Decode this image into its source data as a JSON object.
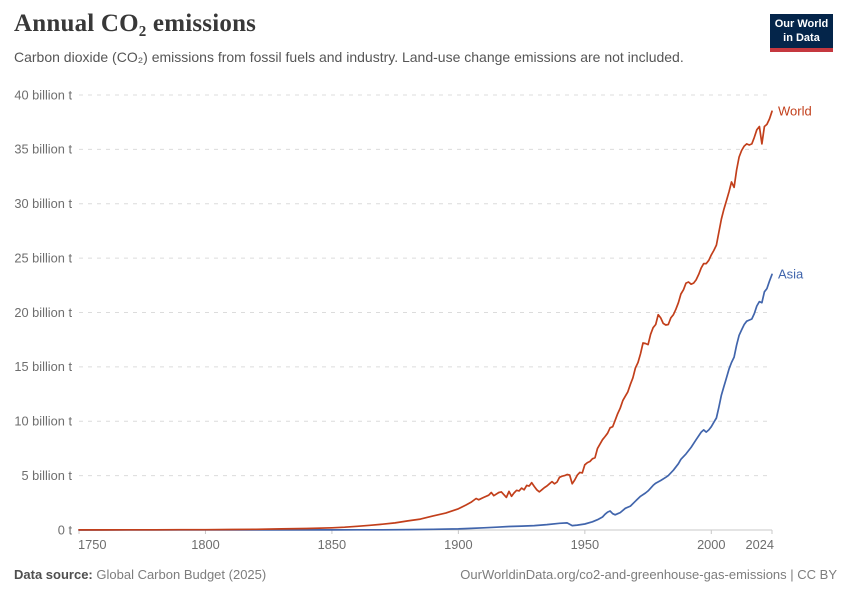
{
  "header": {
    "title": "Annual CO₂ emissions",
    "subtitle": "Carbon dioxide (CO₂) emissions from fossil fuels and industry. Land-use change emissions are not included.",
    "logo": {
      "line1": "Our World",
      "line2": "in Data",
      "bg_color": "#04254A",
      "accent_color": "#C5383F"
    }
  },
  "footer": {
    "source_label": "Data source:",
    "source_text": "Global Carbon Budget (2025)",
    "link_text": "OurWorldinData.org/co2-and-greenhouse-gas-emissions | CC BY"
  },
  "chart_data": {
    "type": "line",
    "title": "Annual CO₂ emissions",
    "unit": "billion tonnes of CO₂",
    "xlim": [
      1750,
      2024
    ],
    "ylim": [
      0,
      40
    ],
    "grid": "horizontal-dashed",
    "legend_position": "line-end-labels",
    "x_ticks": [
      1750,
      1800,
      1850,
      1900,
      1950,
      2000,
      2024
    ],
    "y_ticks": [
      {
        "value": 0,
        "label": "0 t"
      },
      {
        "value": 5,
        "label": "5 billion t"
      },
      {
        "value": 10,
        "label": "10 billion t"
      },
      {
        "value": 15,
        "label": "15 billion t"
      },
      {
        "value": 20,
        "label": "20 billion t"
      },
      {
        "value": 25,
        "label": "25 billion t"
      },
      {
        "value": 30,
        "label": "30 billion t"
      },
      {
        "value": 35,
        "label": "35 billion t"
      },
      {
        "value": 40,
        "label": "40 billion t"
      }
    ],
    "series": [
      {
        "name": "Asia",
        "color": "#4165AC",
        "points": [
          [
            1750,
            0
          ],
          [
            1800,
            0.005
          ],
          [
            1850,
            0.01
          ],
          [
            1860,
            0.015
          ],
          [
            1870,
            0.02
          ],
          [
            1880,
            0.035
          ],
          [
            1890,
            0.06
          ],
          [
            1900,
            0.1
          ],
          [
            1905,
            0.15
          ],
          [
            1910,
            0.2
          ],
          [
            1915,
            0.26
          ],
          [
            1920,
            0.32
          ],
          [
            1925,
            0.36
          ],
          [
            1930,
            0.4
          ],
          [
            1935,
            0.5
          ],
          [
            1940,
            0.62
          ],
          [
            1943,
            0.65
          ],
          [
            1945,
            0.4
          ],
          [
            1947,
            0.45
          ],
          [
            1950,
            0.55
          ],
          [
            1953,
            0.75
          ],
          [
            1955,
            0.95
          ],
          [
            1957,
            1.2
          ],
          [
            1958,
            1.45
          ],
          [
            1959,
            1.65
          ],
          [
            1960,
            1.75
          ],
          [
            1961,
            1.5
          ],
          [
            1962,
            1.4
          ],
          [
            1963,
            1.5
          ],
          [
            1964,
            1.6
          ],
          [
            1966,
            2.0
          ],
          [
            1968,
            2.2
          ],
          [
            1970,
            2.65
          ],
          [
            1972,
            3.1
          ],
          [
            1974,
            3.4
          ],
          [
            1975,
            3.6
          ],
          [
            1977,
            4.1
          ],
          [
            1978,
            4.3
          ],
          [
            1980,
            4.55
          ],
          [
            1982,
            4.85
          ],
          [
            1983,
            5.0
          ],
          [
            1985,
            5.5
          ],
          [
            1987,
            6.1
          ],
          [
            1988,
            6.5
          ],
          [
            1990,
            7.0
          ],
          [
            1992,
            7.6
          ],
          [
            1994,
            8.3
          ],
          [
            1996,
            9.0
          ],
          [
            1997,
            9.2
          ],
          [
            1998,
            9.0
          ],
          [
            1999,
            9.2
          ],
          [
            2000,
            9.5
          ],
          [
            2001,
            9.9
          ],
          [
            2002,
            10.3
          ],
          [
            2003,
            11.3
          ],
          [
            2004,
            12.4
          ],
          [
            2005,
            13.2
          ],
          [
            2006,
            14.0
          ],
          [
            2007,
            14.8
          ],
          [
            2008,
            15.4
          ],
          [
            2009,
            15.9
          ],
          [
            2010,
            17.0
          ],
          [
            2011,
            17.9
          ],
          [
            2012,
            18.4
          ],
          [
            2013,
            18.9
          ],
          [
            2014,
            19.2
          ],
          [
            2015,
            19.3
          ],
          [
            2016,
            19.4
          ],
          [
            2017,
            19.9
          ],
          [
            2018,
            20.6
          ],
          [
            2019,
            21.0
          ],
          [
            2020,
            20.9
          ],
          [
            2021,
            21.9
          ],
          [
            2022,
            22.2
          ],
          [
            2023,
            22.9
          ],
          [
            2024,
            23.5
          ]
        ]
      },
      {
        "name": "World",
        "color": "#C23F1B",
        "points": [
          [
            1750,
            0.01
          ],
          [
            1760,
            0.01
          ],
          [
            1770,
            0.015
          ],
          [
            1780,
            0.02
          ],
          [
            1790,
            0.025
          ],
          [
            1800,
            0.03
          ],
          [
            1810,
            0.05
          ],
          [
            1820,
            0.06
          ],
          [
            1830,
            0.1
          ],
          [
            1840,
            0.14
          ],
          [
            1850,
            0.2
          ],
          [
            1855,
            0.26
          ],
          [
            1860,
            0.34
          ],
          [
            1865,
            0.43
          ],
          [
            1870,
            0.53
          ],
          [
            1875,
            0.65
          ],
          [
            1880,
            0.84
          ],
          [
            1885,
            1.0
          ],
          [
            1890,
            1.3
          ],
          [
            1895,
            1.55
          ],
          [
            1900,
            1.95
          ],
          [
            1903,
            2.3
          ],
          [
            1905,
            2.55
          ],
          [
            1907,
            2.9
          ],
          [
            1908,
            2.78
          ],
          [
            1910,
            3.0
          ],
          [
            1912,
            3.2
          ],
          [
            1913,
            3.45
          ],
          [
            1914,
            3.15
          ],
          [
            1916,
            3.45
          ],
          [
            1917,
            3.5
          ],
          [
            1919,
            3.0
          ],
          [
            1920,
            3.55
          ],
          [
            1921,
            3.1
          ],
          [
            1922,
            3.4
          ],
          [
            1923,
            3.65
          ],
          [
            1924,
            3.6
          ],
          [
            1925,
            3.85
          ],
          [
            1926,
            3.7
          ],
          [
            1927,
            4.1
          ],
          [
            1928,
            4.05
          ],
          [
            1929,
            4.35
          ],
          [
            1930,
            4.0
          ],
          [
            1931,
            3.7
          ],
          [
            1932,
            3.5
          ],
          [
            1933,
            3.7
          ],
          [
            1934,
            3.9
          ],
          [
            1935,
            4.05
          ],
          [
            1936,
            4.25
          ],
          [
            1937,
            4.45
          ],
          [
            1938,
            4.25
          ],
          [
            1939,
            4.4
          ],
          [
            1940,
            4.85
          ],
          [
            1941,
            4.95
          ],
          [
            1942,
            5.0
          ],
          [
            1943,
            5.1
          ],
          [
            1944,
            5.05
          ],
          [
            1945,
            4.25
          ],
          [
            1946,
            4.6
          ],
          [
            1947,
            5.05
          ],
          [
            1948,
            5.3
          ],
          [
            1949,
            5.25
          ],
          [
            1950,
            6.0
          ],
          [
            1951,
            6.2
          ],
          [
            1952,
            6.3
          ],
          [
            1953,
            6.55
          ],
          [
            1954,
            6.65
          ],
          [
            1955,
            7.5
          ],
          [
            1956,
            7.9
          ],
          [
            1957,
            8.3
          ],
          [
            1958,
            8.6
          ],
          [
            1959,
            8.9
          ],
          [
            1960,
            9.4
          ],
          [
            1961,
            9.5
          ],
          [
            1962,
            10.1
          ],
          [
            1963,
            10.7
          ],
          [
            1964,
            11.2
          ],
          [
            1965,
            11.9
          ],
          [
            1966,
            12.3
          ],
          [
            1967,
            12.7
          ],
          [
            1968,
            13.4
          ],
          [
            1969,
            14.0
          ],
          [
            1970,
            14.9
          ],
          [
            1971,
            15.4
          ],
          [
            1972,
            16.2
          ],
          [
            1973,
            17.2
          ],
          [
            1974,
            17.15
          ],
          [
            1975,
            17.05
          ],
          [
            1976,
            18.0
          ],
          [
            1977,
            18.6
          ],
          [
            1978,
            18.9
          ],
          [
            1979,
            19.8
          ],
          [
            1980,
            19.5
          ],
          [
            1981,
            19.0
          ],
          [
            1982,
            18.85
          ],
          [
            1983,
            18.9
          ],
          [
            1984,
            19.5
          ],
          [
            1985,
            19.8
          ],
          [
            1986,
            20.3
          ],
          [
            1987,
            20.9
          ],
          [
            1988,
            21.7
          ],
          [
            1989,
            22.1
          ],
          [
            1990,
            22.7
          ],
          [
            1991,
            22.8
          ],
          [
            1992,
            22.6
          ],
          [
            1993,
            22.7
          ],
          [
            1994,
            23.0
          ],
          [
            1995,
            23.5
          ],
          [
            1996,
            24.1
          ],
          [
            1997,
            24.5
          ],
          [
            1998,
            24.5
          ],
          [
            1999,
            24.8
          ],
          [
            2000,
            25.3
          ],
          [
            2001,
            25.7
          ],
          [
            2002,
            26.2
          ],
          [
            2003,
            27.4
          ],
          [
            2004,
            28.6
          ],
          [
            2005,
            29.5
          ],
          [
            2006,
            30.3
          ],
          [
            2007,
            31.1
          ],
          [
            2008,
            32.0
          ],
          [
            2009,
            31.5
          ],
          [
            2010,
            33.1
          ],
          [
            2011,
            34.3
          ],
          [
            2012,
            34.9
          ],
          [
            2013,
            35.3
          ],
          [
            2014,
            35.5
          ],
          [
            2015,
            35.4
          ],
          [
            2016,
            35.5
          ],
          [
            2017,
            36.1
          ],
          [
            2018,
            36.8
          ],
          [
            2019,
            37.1
          ],
          [
            2020,
            35.5
          ],
          [
            2021,
            37.1
          ],
          [
            2022,
            37.3
          ],
          [
            2023,
            37.8
          ],
          [
            2024,
            38.5
          ]
        ]
      }
    ]
  }
}
